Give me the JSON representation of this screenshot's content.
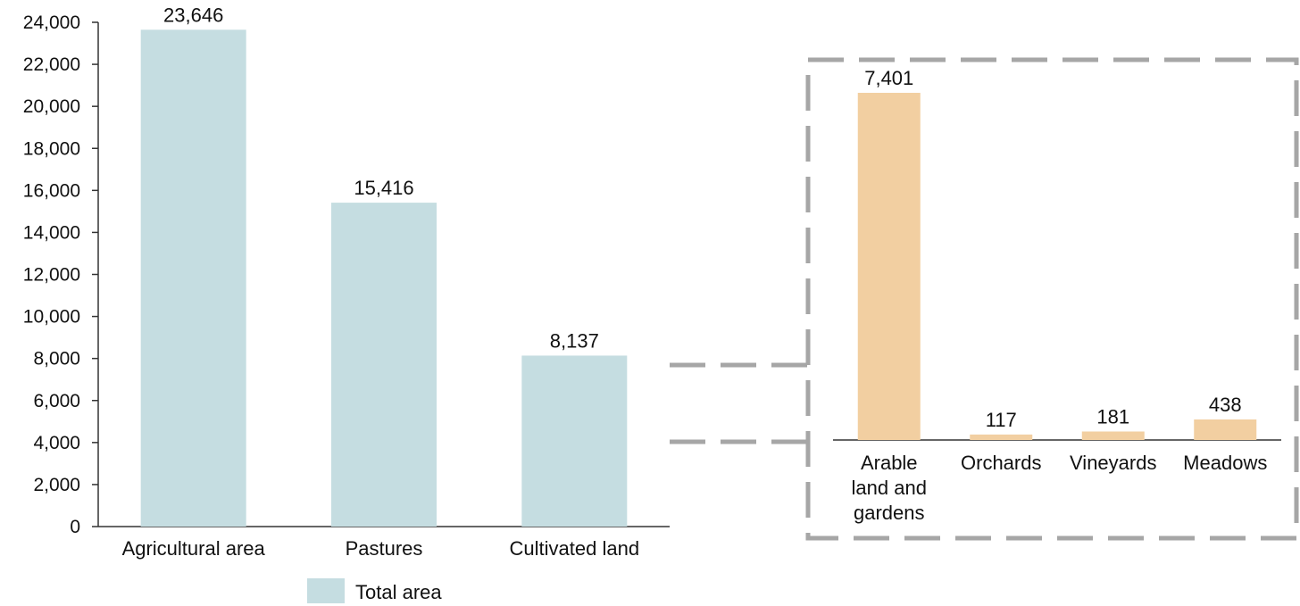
{
  "chart_data": [
    {
      "type": "bar",
      "categories": [
        "Agricultural area",
        "Pastures",
        "Cultivated land"
      ],
      "series": [
        {
          "name": "Total area",
          "values": [
            23646,
            15416,
            8137
          ],
          "color": "#c5dde1"
        }
      ],
      "data_labels": [
        "23,646",
        "15,416",
        "8,137"
      ],
      "y_ticks": [
        "0",
        "2,000",
        "4,000",
        "6,000",
        "8,000",
        "10,000",
        "12,000",
        "14,000",
        "16,000",
        "18,000",
        "20,000",
        "22,000",
        "24,000"
      ],
      "ylim": [
        0,
        24000
      ],
      "grid": false,
      "legend": "bottom"
    },
    {
      "type": "bar",
      "categories": [
        [
          "Arable",
          "land and",
          "gardens"
        ],
        [
          "Orchards"
        ],
        [
          "Vineyards"
        ],
        [
          "Meadows"
        ]
      ],
      "series": [
        {
          "values": [
            7401,
            117,
            181,
            438
          ],
          "color": "#f2cfa1"
        }
      ],
      "data_labels": [
        "7,401",
        "117",
        "181",
        "438"
      ],
      "grid": false,
      "legend": "none",
      "frame": "dashed"
    }
  ],
  "colors": {
    "frame": "#a6a6a6",
    "axis": "#333333",
    "text": "#111111"
  }
}
